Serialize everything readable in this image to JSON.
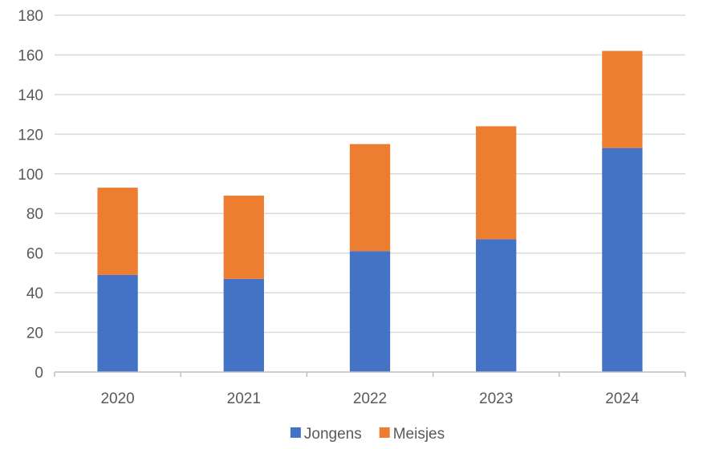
{
  "chart_data": {
    "type": "bar",
    "stacked": true,
    "title": "",
    "xlabel": "",
    "ylabel": "",
    "categories": [
      "2020",
      "2021",
      "2022",
      "2023",
      "2024"
    ],
    "series": [
      {
        "name": "Jongens",
        "values": [
          49,
          47,
          61,
          67,
          113
        ],
        "color": "#4472c4"
      },
      {
        "name": "Meisjes",
        "values": [
          44,
          42,
          54,
          57,
          49
        ],
        "color": "#ed7d31"
      }
    ],
    "ylim": [
      0,
      180
    ],
    "yticks": [
      "0",
      "20",
      "40",
      "60",
      "80",
      "100",
      "120",
      "140",
      "160",
      "180"
    ],
    "grid": true,
    "legend_position": "bottom"
  }
}
